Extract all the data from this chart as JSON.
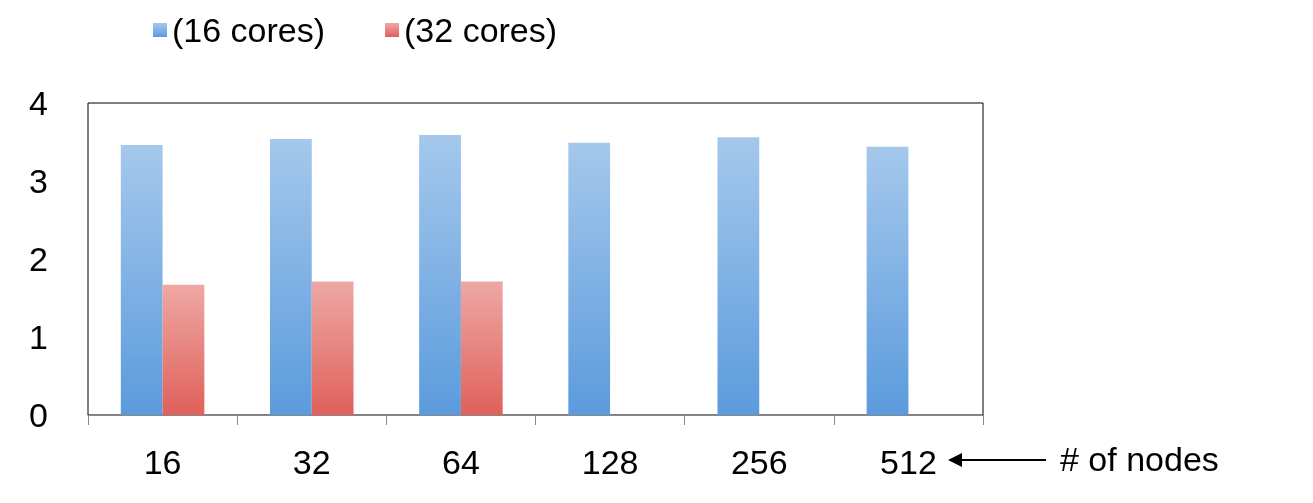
{
  "chart_data": {
    "type": "bar",
    "categories": [
      "16",
      "32",
      "64",
      "128",
      "256",
      "512"
    ],
    "series": [
      {
        "name": "(16 cores)",
        "color": "#5b9bdd",
        "values": [
          3.46,
          3.54,
          3.59,
          3.49,
          3.56,
          3.44
        ]
      },
      {
        "name": "(32 cores)",
        "color": "#e0605a",
        "values": [
          1.67,
          1.71,
          1.71,
          null,
          null,
          null
        ]
      }
    ],
    "ylim": [
      0,
      4
    ],
    "yticks": [
      0,
      1,
      2,
      3,
      4
    ],
    "grid": false,
    "legend": "top left",
    "annotations": [
      "# of nodes"
    ]
  }
}
